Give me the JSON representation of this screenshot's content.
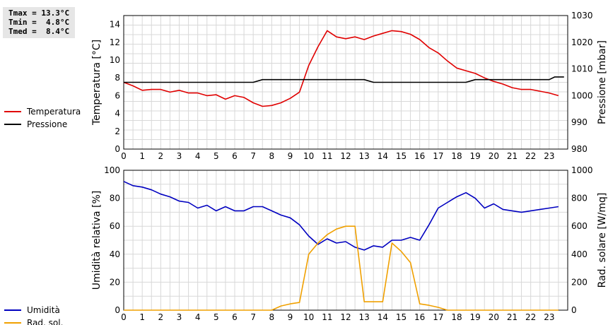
{
  "stats": {
    "tmax": "Tmax = 13.3°C",
    "tmin": "Tmin =  4.8°C",
    "tmed": "Tmed =  8.4°C"
  },
  "chart_data": [
    {
      "type": "line",
      "ylabel": "Temperatura [°C]",
      "y2label": "Pressione [mbar]",
      "xlim": [
        0,
        24
      ],
      "ylim": [
        0,
        15
      ],
      "y2lim": [
        980,
        1030
      ],
      "x_ticks": [
        0,
        1,
        2,
        3,
        4,
        5,
        6,
        7,
        8,
        9,
        10,
        11,
        12,
        13,
        14,
        15,
        16,
        17,
        18,
        19,
        20,
        21,
        22,
        23
      ],
      "y_ticks": [
        0,
        2,
        4,
        6,
        8,
        10,
        12,
        14
      ],
      "y2_ticks": [
        980,
        990,
        1000,
        1010,
        1020,
        1030
      ],
      "grid": true,
      "legend_position": "left",
      "series": [
        {
          "name": "Temperatura",
          "axis": "left",
          "color": "#e00000",
          "x": [
            0,
            0.5,
            1,
            1.5,
            2,
            2.5,
            3,
            3.5,
            4,
            4.5,
            5,
            5.5,
            6,
            6.5,
            7,
            7.5,
            8,
            8.5,
            9,
            9.5,
            10,
            10.5,
            11,
            11.5,
            12,
            12.5,
            13,
            13.5,
            14,
            14.5,
            15,
            15.5,
            16,
            16.5,
            17,
            17.5,
            18,
            18.5,
            19,
            19.5,
            20,
            20.5,
            21,
            21.5,
            22,
            22.5,
            23,
            23.5
          ],
          "values": [
            7.5,
            7.1,
            6.6,
            6.7,
            6.7,
            6.4,
            6.6,
            6.3,
            6.3,
            6.0,
            6.1,
            5.6,
            6.0,
            5.8,
            5.2,
            4.8,
            4.9,
            5.2,
            5.7,
            6.4,
            9.4,
            11.5,
            13.3,
            12.6,
            12.4,
            12.6,
            12.3,
            12.7,
            13.0,
            13.3,
            13.2,
            12.9,
            12.3,
            11.4,
            10.8,
            9.9,
            9.1,
            8.8,
            8.5,
            8.0,
            7.6,
            7.3,
            6.9,
            6.7,
            6.7,
            6.5,
            6.3,
            6.0
          ]
        },
        {
          "name": "Pressione",
          "axis": "right",
          "color": "#000000",
          "x": [
            0,
            7,
            7.5,
            13,
            13.5,
            18.5,
            19,
            23,
            23.3,
            23.8
          ],
          "values": [
            1005,
            1005,
            1006,
            1006,
            1005,
            1005,
            1006,
            1006,
            1007,
            1007
          ]
        }
      ]
    },
    {
      "type": "line",
      "ylabel": "Umidità relativa [%]",
      "y2label": "Rad. solare [W/mq]",
      "xlim": [
        0,
        24
      ],
      "ylim": [
        0,
        100
      ],
      "y2lim": [
        0,
        1000
      ],
      "x_ticks": [
        0,
        1,
        2,
        3,
        4,
        5,
        6,
        7,
        8,
        9,
        10,
        11,
        12,
        13,
        14,
        15,
        16,
        17,
        18,
        19,
        20,
        21,
        22,
        23
      ],
      "y_ticks": [
        0,
        20,
        40,
        60,
        80,
        100
      ],
      "y2_ticks": [
        0,
        200,
        400,
        600,
        800,
        1000
      ],
      "grid": true,
      "legend_position": "left",
      "series": [
        {
          "name": "Umidità",
          "axis": "left",
          "color": "#0000c0",
          "x": [
            0,
            0.5,
            1,
            1.5,
            2,
            2.5,
            3,
            3.5,
            4,
            4.5,
            5,
            5.5,
            6,
            6.5,
            7,
            7.5,
            8,
            8.5,
            9,
            9.5,
            10,
            10.5,
            11,
            11.5,
            12,
            12.5,
            13,
            13.5,
            14,
            14.5,
            15,
            15.5,
            16,
            16.5,
            17,
            17.5,
            18,
            18.5,
            19,
            19.5,
            20,
            20.5,
            21,
            21.5,
            22,
            22.5,
            23,
            23.5
          ],
          "values": [
            92,
            89,
            88,
            86,
            83,
            81,
            78,
            77,
            73,
            75,
            71,
            74,
            71,
            71,
            74,
            74,
            71,
            68,
            66,
            61,
            53,
            47,
            51,
            48,
            49,
            45,
            43,
            46,
            45,
            50,
            50,
            52,
            50,
            61,
            73,
            77,
            81,
            84,
            80,
            73,
            76,
            72,
            71,
            70,
            71,
            72,
            73,
            74
          ]
        },
        {
          "name": "Rad. sol.",
          "axis": "right",
          "color": "#f0a000",
          "x": [
            0,
            8,
            8.5,
            9,
            9.5,
            10,
            10.5,
            11,
            11.5,
            12,
            12.5,
            13,
            13.5,
            14,
            14.5,
            15,
            15.5,
            16,
            16.5,
            17,
            17.5,
            18,
            23.5
          ],
          "values": [
            0,
            0,
            30,
            45,
            55,
            400,
            480,
            540,
            580,
            600,
            600,
            60,
            60,
            60,
            480,
            420,
            340,
            45,
            35,
            20,
            0,
            0,
            0
          ]
        }
      ]
    }
  ]
}
